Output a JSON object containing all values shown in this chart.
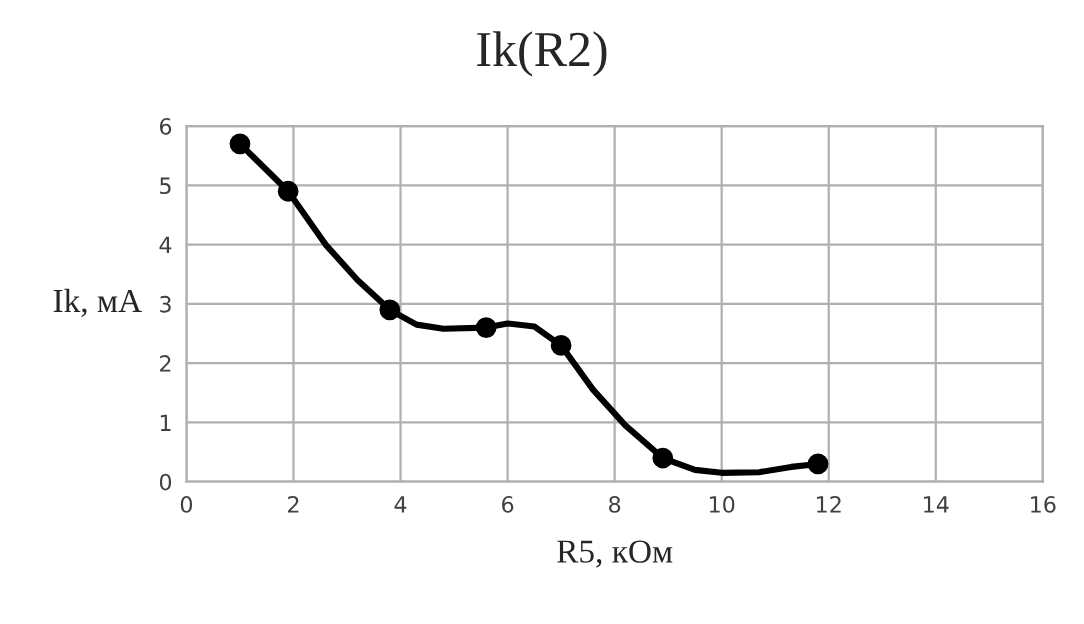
{
  "chart_data": {
    "type": "line",
    "title": "Ik(R2)",
    "xlabel": "R5, кОм",
    "ylabel": "Ik, мА",
    "xlim": [
      0,
      16
    ],
    "xticks": [
      0,
      2,
      4,
      6,
      8,
      10,
      12,
      14,
      16
    ],
    "ylim": [
      0,
      6
    ],
    "yticks": [
      0,
      1,
      2,
      3,
      4,
      5,
      6
    ],
    "grid": true,
    "series": [
      {
        "color": "#000000",
        "marker": "none",
        "x": [
          1.0,
          1.9,
          2.6,
          3.2,
          3.8,
          4.3,
          4.8,
          5.6,
          6.0,
          6.5,
          7.0,
          7.6,
          8.2,
          8.9,
          9.5,
          10.0,
          10.7,
          11.3,
          11.8
        ],
        "values": [
          5.7,
          4.9,
          4.0,
          3.4,
          2.9,
          2.65,
          2.58,
          2.6,
          2.67,
          2.62,
          2.3,
          1.55,
          0.95,
          0.4,
          0.2,
          0.15,
          0.16,
          0.25,
          0.3
        ]
      },
      {
        "type": "scatter",
        "color": "#000000",
        "marker": "circle",
        "x": [
          1.0,
          1.9,
          3.8,
          5.6,
          7.0,
          8.9,
          11.8
        ],
        "values": [
          5.7,
          4.9,
          2.9,
          2.6,
          2.3,
          0.4,
          0.3
        ]
      }
    ]
  }
}
